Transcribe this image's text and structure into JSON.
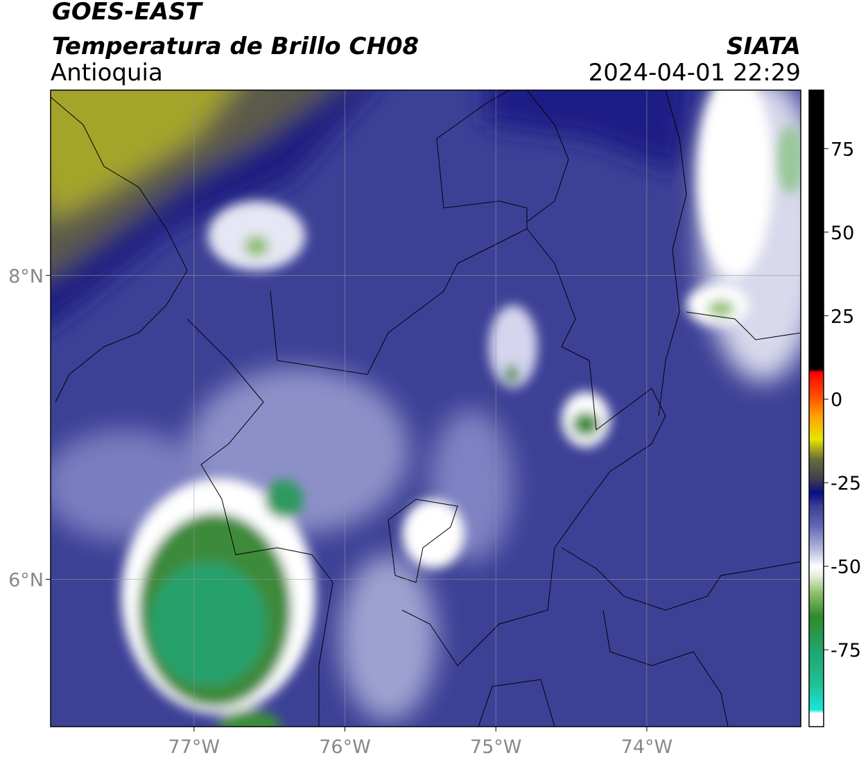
{
  "header": {
    "satellite": "GOES-EAST",
    "product": "Temperatura de Brillo CH08",
    "region": "Antioquia",
    "agency": "SIATA",
    "timestamp": "2024-04-01 22:29"
  },
  "map": {
    "xlim": [
      -77.95,
      -72.98
    ],
    "ylim": [
      5.03,
      9.22
    ],
    "xticks": [
      {
        "value": -77,
        "label": "77°W"
      },
      {
        "value": -76,
        "label": "76°W"
      },
      {
        "value": -75,
        "label": "75°W"
      },
      {
        "value": -74,
        "label": "74°W"
      }
    ],
    "yticks": [
      {
        "value": 6,
        "label": "6°N"
      },
      {
        "value": 8,
        "label": "8°N"
      }
    ],
    "grid": true
  },
  "colorbar": {
    "lim": [
      -98,
      92.5
    ],
    "ticks": [
      -75,
      -50,
      -25,
      0,
      25,
      50,
      75
    ],
    "colormap": [
      [
        -98,
        "#ffffff"
      ],
      [
        -94,
        "#ffffff"
      ],
      [
        -93,
        "#19e6d8"
      ],
      [
        -85,
        "#1fbf94"
      ],
      [
        -75,
        "#22a46e"
      ],
      [
        -65,
        "#2f8a2a"
      ],
      [
        -58,
        "#8fbf6a"
      ],
      [
        -53,
        "#dfeedd"
      ],
      [
        -50,
        "#ffffff"
      ],
      [
        -45,
        "#b6b9dc"
      ],
      [
        -38,
        "#6267b4"
      ],
      [
        -32,
        "#3a3f98"
      ],
      [
        -28,
        "#0a0d7e"
      ],
      [
        -24,
        "#3d3d52"
      ],
      [
        -18,
        "#6a6a3a"
      ],
      [
        -12,
        "#e6e600"
      ],
      [
        -5,
        "#ffa000"
      ],
      [
        0,
        "#ff5a00"
      ],
      [
        8,
        "#ff0000"
      ],
      [
        9,
        "#000000"
      ],
      [
        92.5,
        "#000000"
      ]
    ]
  }
}
